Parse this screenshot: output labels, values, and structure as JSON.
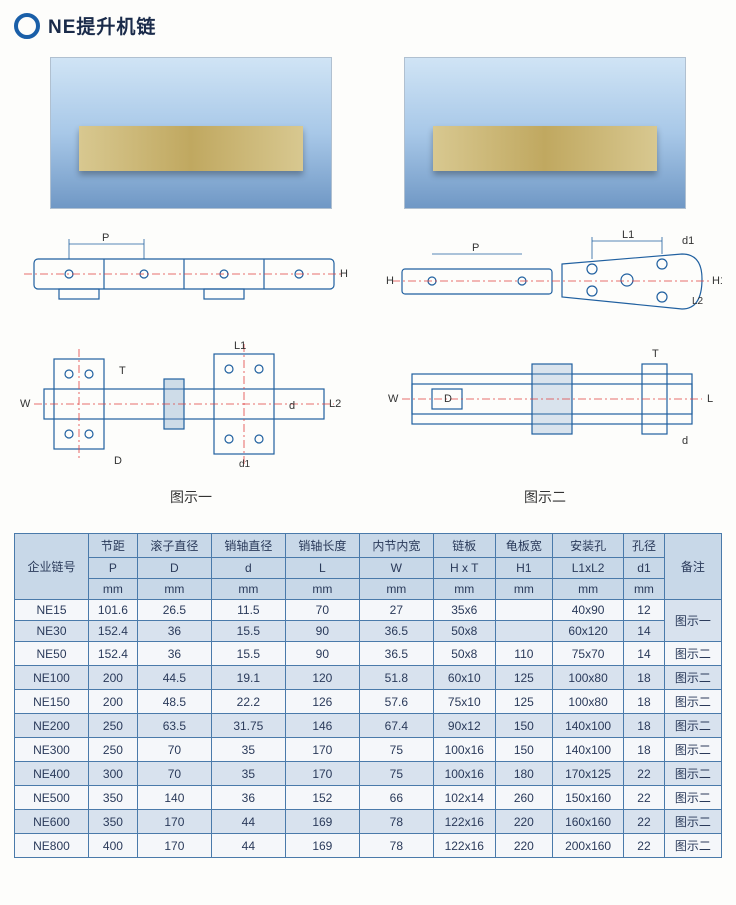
{
  "title": "NE提升机链",
  "diagram_labels": {
    "left": "图示一",
    "right": "图示二"
  },
  "dim_labels": {
    "P": "P",
    "H": "H",
    "L1": "L1",
    "d1": "d1",
    "L2": "L2",
    "W": "W",
    "D": "D",
    "T": "T",
    "d": "d",
    "L": "L",
    "H1": "H1"
  },
  "diagram_style": {
    "stroke_main": "#2060a0",
    "stroke_center": "#e04040",
    "fill_hatch": "#88aacc"
  },
  "table": {
    "header_rows": [
      [
        "",
        "节距",
        "滚子直径",
        "销轴直径",
        "销轴长度",
        "内节内宽",
        "链板",
        "龟板宽",
        "安装孔",
        "孔径",
        ""
      ],
      [
        "企业链号",
        "P",
        "D",
        "d",
        "L",
        "W",
        "H x T",
        "H1",
        "L1xL2",
        "d1",
        "备注"
      ],
      [
        "",
        "mm",
        "mm",
        "mm",
        "mm",
        "mm",
        "mm",
        "mm",
        "mm",
        "mm",
        ""
      ]
    ],
    "rows": [
      {
        "cells": [
          "NE15",
          "101.6",
          "26.5",
          "11.5",
          "70",
          "27",
          "35x6",
          "",
          "40x90",
          "12"
        ],
        "note": "图示一",
        "note_rowspan": 2
      },
      {
        "cells": [
          "NE30",
          "152.4",
          "36",
          "15.5",
          "90",
          "36.5",
          "50x8",
          "",
          "60x120",
          "14"
        ]
      },
      {
        "cells": [
          "NE50",
          "152.4",
          "36",
          "15.5",
          "90",
          "36.5",
          "50x8",
          "110",
          "75x70",
          "14"
        ],
        "note": "图示二"
      },
      {
        "cells": [
          "NE100",
          "200",
          "44.5",
          "19.1",
          "120",
          "51.8",
          "60x10",
          "125",
          "100x80",
          "18"
        ],
        "note": "图示二"
      },
      {
        "cells": [
          "NE150",
          "200",
          "48.5",
          "22.2",
          "126",
          "57.6",
          "75x10",
          "125",
          "100x80",
          "18"
        ],
        "note": "图示二"
      },
      {
        "cells": [
          "NE200",
          "250",
          "63.5",
          "31.75",
          "146",
          "67.4",
          "90x12",
          "150",
          "140x100",
          "18"
        ],
        "note": "图示二"
      },
      {
        "cells": [
          "NE300",
          "250",
          "70",
          "35",
          "170",
          "75",
          "100x16",
          "150",
          "140x100",
          "18"
        ],
        "note": "图示二"
      },
      {
        "cells": [
          "NE400",
          "300",
          "70",
          "35",
          "170",
          "75",
          "100x16",
          "180",
          "170x125",
          "22"
        ],
        "note": "图示二"
      },
      {
        "cells": [
          "NE500",
          "350",
          "140",
          "36",
          "152",
          "66",
          "102x14",
          "260",
          "150x160",
          "22"
        ],
        "note": "图示二"
      },
      {
        "cells": [
          "NE600",
          "350",
          "170",
          "44",
          "169",
          "78",
          "122x16",
          "220",
          "160x160",
          "22"
        ],
        "note": "图示二"
      },
      {
        "cells": [
          "NE800",
          "400",
          "170",
          "44",
          "169",
          "78",
          "122x16",
          "220",
          "200x160",
          "22"
        ],
        "note": "图示二"
      }
    ]
  }
}
